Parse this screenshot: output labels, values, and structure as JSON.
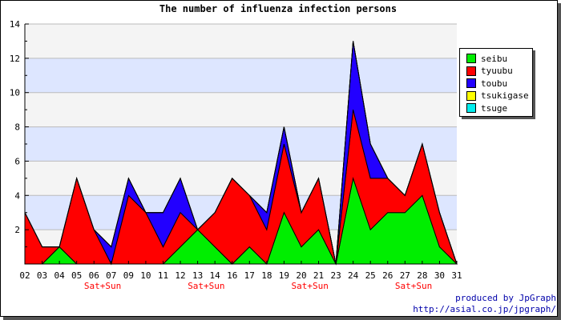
{
  "chart_data": {
    "type": "area",
    "title": "The number of influenza infection persons",
    "x": [
      "02",
      "03",
      "04",
      "05",
      "06",
      "07",
      "09",
      "10",
      "11",
      "12",
      "13",
      "14",
      "16",
      "17",
      "18",
      "19",
      "20",
      "21",
      "23",
      "24",
      "25",
      "26",
      "27",
      "28",
      "30",
      "31"
    ],
    "weekend_labels": [
      {
        "x": "06",
        "label": "Sat+Sun"
      },
      {
        "x": "13",
        "label": "Sat+Sun"
      },
      {
        "x": "20",
        "label": "Sat+Sun"
      },
      {
        "x": "27",
        "label": "Sat+Sun"
      }
    ],
    "ylim": [
      0,
      14
    ],
    "yticks": [
      2,
      4,
      6,
      8,
      10,
      12,
      14
    ],
    "stacked": true,
    "series": [
      {
        "name": "seibu",
        "color": "#00ee00",
        "values": [
          0,
          0,
          1,
          0,
          0,
          0,
          0,
          0,
          0,
          1,
          2,
          1,
          0,
          1,
          0,
          3,
          1,
          2,
          0,
          5,
          2,
          3,
          3,
          4,
          1,
          0
        ]
      },
      {
        "name": "tyuubu",
        "color": "#ff0000",
        "values": [
          3,
          1,
          0,
          5,
          2,
          0,
          4,
          3,
          1,
          2,
          0,
          2,
          5,
          3,
          2,
          4,
          2,
          3,
          0,
          4,
          3,
          2,
          1,
          3,
          2,
          0
        ]
      },
      {
        "name": "toubu",
        "color": "#2200ff",
        "values": [
          0,
          0,
          0,
          0,
          0,
          1,
          1,
          0,
          2,
          2,
          0,
          0,
          0,
          0,
          1,
          1,
          0,
          0,
          0,
          4,
          2,
          0,
          0,
          0,
          0,
          0
        ]
      },
      {
        "name": "tsukigase",
        "color": "#ffff00",
        "values": [
          0,
          0,
          0,
          0,
          0,
          0,
          0,
          0,
          0,
          0,
          0,
          0,
          0,
          0,
          0,
          0,
          0,
          0,
          0,
          0,
          0,
          0,
          0,
          0,
          0,
          0
        ]
      },
      {
        "name": "tsuge",
        "color": "#00eeee",
        "values": [
          0,
          0,
          0,
          0,
          0,
          0,
          0,
          0,
          0,
          0,
          0,
          0,
          0,
          0,
          0,
          0,
          0,
          0,
          0,
          0,
          0,
          0,
          0,
          0,
          0,
          0
        ]
      }
    ],
    "grid": true,
    "legend_position": "right"
  },
  "credit": {
    "line1": "produced by JpGraph",
    "line2": "http://asial.co.jp/jpgraph/"
  }
}
